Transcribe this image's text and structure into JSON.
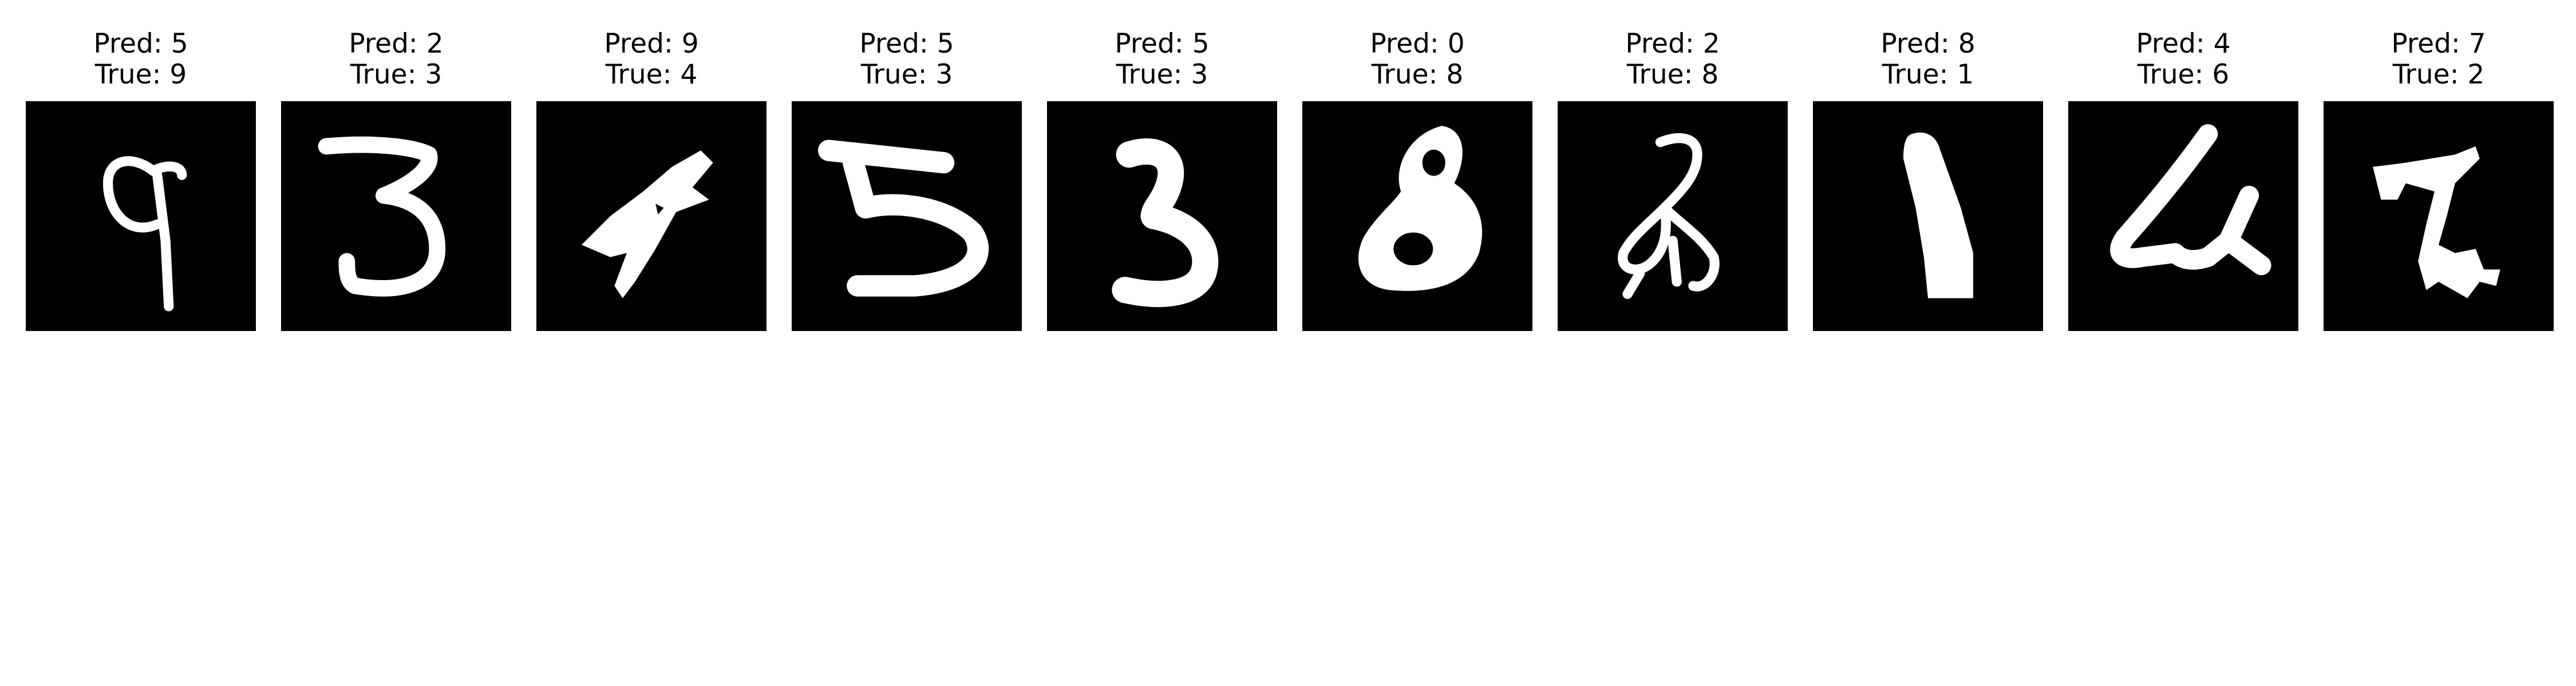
{
  "figure": {
    "background": "#ffffff",
    "image_background": "#000000",
    "stroke_color": "#ffffff"
  },
  "samples": [
    {
      "pred_label": "Pred: 5",
      "true_label": "True: 9",
      "pred": 5,
      "true": 9,
      "glyph": "handwritten-9"
    },
    {
      "pred_label": "Pred: 2",
      "true_label": "True: 3",
      "pred": 2,
      "true": 3,
      "glyph": "handwritten-3"
    },
    {
      "pred_label": "Pred: 9",
      "true_label": "True: 4",
      "pred": 9,
      "true": 4,
      "glyph": "handwritten-4"
    },
    {
      "pred_label": "Pred: 5",
      "true_label": "True: 3",
      "pred": 5,
      "true": 3,
      "glyph": "handwritten-3-flat-top"
    },
    {
      "pred_label": "Pred: 5",
      "true_label": "True: 3",
      "pred": 5,
      "true": 3,
      "glyph": "handwritten-3-bold"
    },
    {
      "pred_label": "Pred: 0",
      "true_label": "True: 8",
      "pred": 0,
      "true": 8,
      "glyph": "handwritten-8"
    },
    {
      "pred_label": "Pred: 2",
      "true_label": "True: 8",
      "pred": 2,
      "true": 8,
      "glyph": "handwritten-8-open"
    },
    {
      "pred_label": "Pred: 8",
      "true_label": "True: 1",
      "pred": 8,
      "true": 1,
      "glyph": "handwritten-1"
    },
    {
      "pred_label": "Pred: 4",
      "true_label": "True: 6",
      "pred": 4,
      "true": 6,
      "glyph": "handwritten-6"
    },
    {
      "pred_label": "Pred: 7",
      "true_label": "True: 2",
      "pred": 7,
      "true": 2,
      "glyph": "handwritten-2"
    }
  ]
}
